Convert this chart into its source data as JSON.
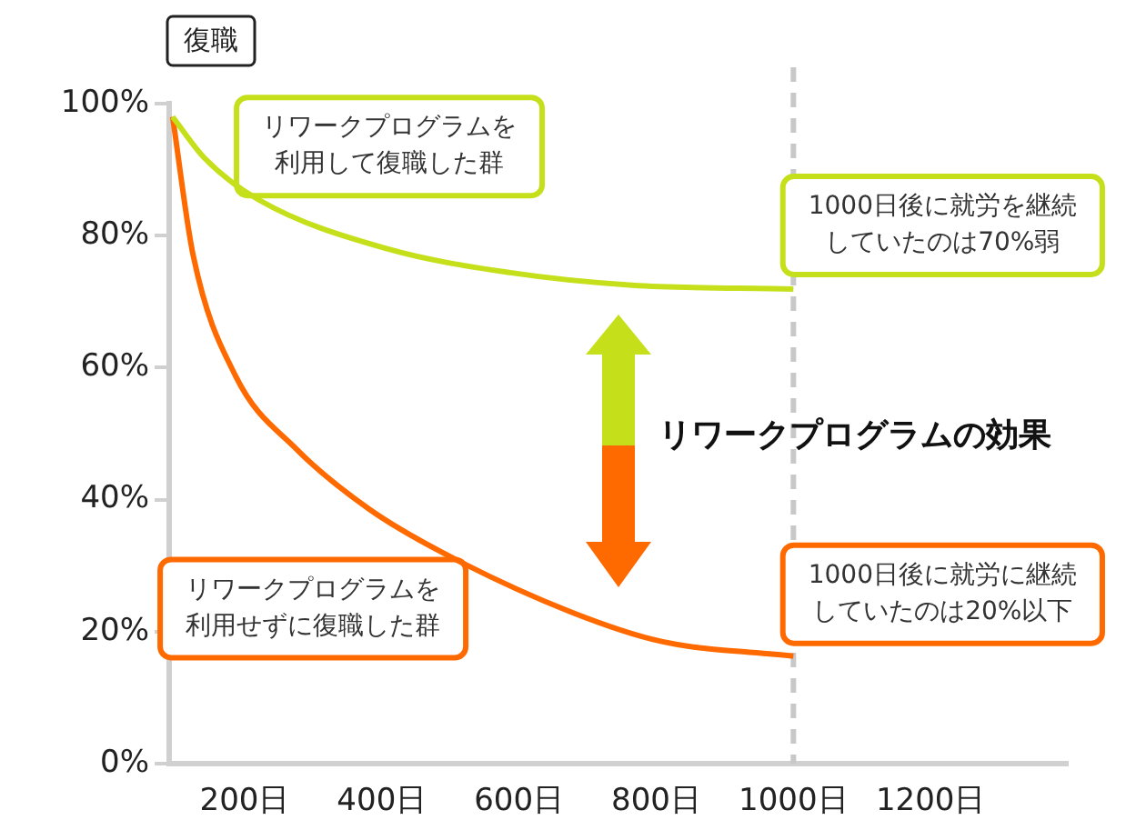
{
  "chart_data": {
    "type": "line",
    "ylabel": "復職",
    "xlim": [
      90,
      1400
    ],
    "xticks": [
      {
        "value": 200,
        "label": "200日"
      },
      {
        "value": 400,
        "label": "400日"
      },
      {
        "value": 600,
        "label": "600日"
      },
      {
        "value": 800,
        "label": "800日"
      },
      {
        "value": 1000,
        "label": "1000日"
      },
      {
        "value": 1200,
        "label": "1200日"
      }
    ],
    "ylim": [
      0,
      100
    ],
    "yticks": [
      {
        "value": 0,
        "label": "0%"
      },
      {
        "value": 20,
        "label": "20%"
      },
      {
        "value": 40,
        "label": "40%"
      },
      {
        "value": 60,
        "label": "60%"
      },
      {
        "value": 80,
        "label": "80%"
      },
      {
        "value": 100,
        "label": "100%"
      }
    ],
    "series": [
      {
        "name": "リワークプログラムを利用して復職した群",
        "color": "#c5e01a",
        "x": [
          95,
          142,
          221,
          408,
          587,
          765,
          1000
        ],
        "values": [
          98,
          91.7,
          85.4,
          78,
          74.4,
          72.5,
          71.9
        ]
      },
      {
        "name": "リワークプログラムを利用せずに復職した群",
        "color": "#ff6a00",
        "x": [
          95,
          125,
          187,
          275,
          381,
          488,
          675,
          808,
          1000
        ],
        "values": [
          98,
          77,
          58.7,
          47.7,
          38.6,
          32,
          23,
          18.5,
          16.3
        ]
      }
    ],
    "ref_lines": [
      {
        "axis": "x",
        "value": 1000,
        "color": "#c8c8c8",
        "line_style": "dashed"
      }
    ],
    "annotations": [
      {
        "text": "1000日後に就労を継続していたのは70%弱",
        "x": 1000,
        "y": 71.9
      },
      {
        "text": "1000日後に就労に継続していたのは20%以下",
        "x": 1000,
        "y": 16.3
      },
      "リワークプログラムの効果"
    ],
    "legend": false,
    "grid": false,
    "marker": "none",
    "line_style": "solid"
  }
}
